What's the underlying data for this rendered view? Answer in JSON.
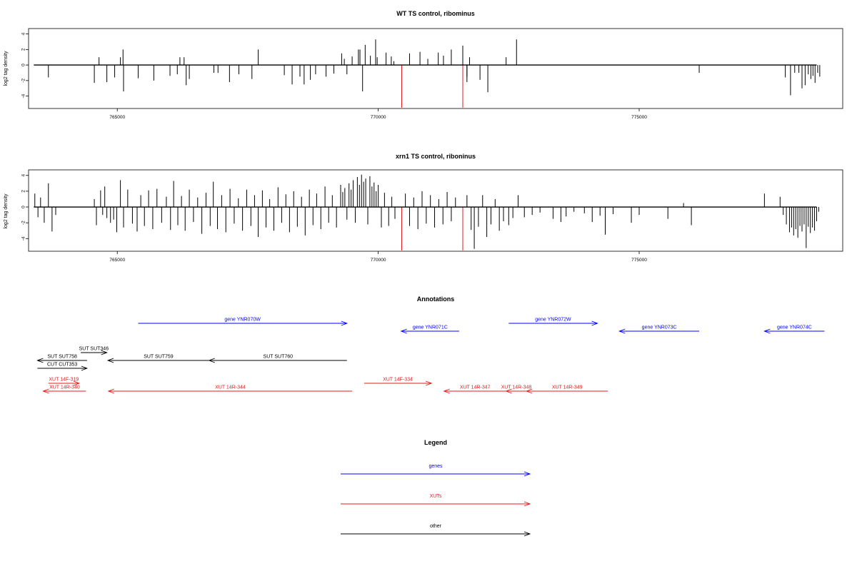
{
  "chart_data": [
    {
      "type": "bar",
      "title": "WT TS control, ribominus",
      "ylabel": "log2 tag density",
      "xlabel": "",
      "xlim": [
        763300,
        778900
      ],
      "ylim": [
        -5.6,
        4.7
      ],
      "xticks": [
        765000,
        770000,
        775000
      ],
      "xtick_labels": [
        "765000",
        "770000",
        "775000"
      ],
      "yticks": [
        4,
        2,
        0,
        -2,
        -4
      ],
      "ytick_labels": [
        "4",
        "2",
        "0",
        "-2",
        "-4"
      ],
      "baseline": {
        "from": 763400,
        "to": 778400
      },
      "bars": [
        {
          "x": 763680,
          "y": -1.6
        },
        {
          "x": 764560,
          "y": -2.3
        },
        {
          "x": 764650,
          "y": 1.0
        },
        {
          "x": 764800,
          "y": -2.2
        },
        {
          "x": 764950,
          "y": -1.6
        },
        {
          "x": 765060,
          "y": 1.0
        },
        {
          "x": 765110,
          "y": 2.0
        },
        {
          "x": 765120,
          "y": -3.4
        },
        {
          "x": 765400,
          "y": -1.7
        },
        {
          "x": 765700,
          "y": -2.0
        },
        {
          "x": 766010,
          "y": -1.4
        },
        {
          "x": 766150,
          "y": -1.2
        },
        {
          "x": 766200,
          "y": 1.0
        },
        {
          "x": 766280,
          "y": 1.0
        },
        {
          "x": 766320,
          "y": -2.6
        },
        {
          "x": 766380,
          "y": -1.8
        },
        {
          "x": 766850,
          "y": -1.0
        },
        {
          "x": 766930,
          "y": -1.0
        },
        {
          "x": 767150,
          "y": -2.2
        },
        {
          "x": 767330,
          "y": -1.2
        },
        {
          "x": 767580,
          "y": -1.8
        },
        {
          "x": 767700,
          "y": 2.0
        },
        {
          "x": 768200,
          "y": -1.3
        },
        {
          "x": 768350,
          "y": -2.5
        },
        {
          "x": 768500,
          "y": -1.5
        },
        {
          "x": 768580,
          "y": -2.5
        },
        {
          "x": 768700,
          "y": -1.9
        },
        {
          "x": 768800,
          "y": -1.2
        },
        {
          "x": 769000,
          "y": -1.5
        },
        {
          "x": 769150,
          "y": -1.1
        },
        {
          "x": 769300,
          "y": 1.5
        },
        {
          "x": 769350,
          "y": 0.8
        },
        {
          "x": 769400,
          "y": -1.2
        },
        {
          "x": 769500,
          "y": 1.1
        },
        {
          "x": 769620,
          "y": 2.0
        },
        {
          "x": 769650,
          "y": 2.0
        },
        {
          "x": 769700,
          "y": -3.4
        },
        {
          "x": 769750,
          "y": 2.6
        },
        {
          "x": 769850,
          "y": 1.2
        },
        {
          "x": 769950,
          "y": 3.3
        },
        {
          "x": 769980,
          "y": 1.0
        },
        {
          "x": 770150,
          "y": 1.6
        },
        {
          "x": 770250,
          "y": 1.1
        },
        {
          "x": 770300,
          "y": 0.5
        },
        {
          "x": 770600,
          "y": 1.5
        },
        {
          "x": 770800,
          "y": 1.7
        },
        {
          "x": 770950,
          "y": 0.8
        },
        {
          "x": 771150,
          "y": 1.6
        },
        {
          "x": 771250,
          "y": 1.2
        },
        {
          "x": 771400,
          "y": 2.0
        },
        {
          "x": 771620,
          "y": 2.5
        },
        {
          "x": 771750,
          "y": 1.0
        },
        {
          "x": 771620,
          "y": -5.5,
          "color": "#e41a1c"
        },
        {
          "x": 770450,
          "y": -5.5,
          "color": "#e41a1c"
        },
        {
          "x": 771700,
          "y": -1.5
        },
        {
          "x": 771700,
          "y": -2.2
        },
        {
          "x": 771950,
          "y": -1.9
        },
        {
          "x": 772100,
          "y": -3.5
        },
        {
          "x": 772450,
          "y": 1.0
        },
        {
          "x": 772650,
          "y": 3.3
        },
        {
          "x": 776150,
          "y": -1.0
        },
        {
          "x": 777800,
          "y": -1.6
        },
        {
          "x": 777900,
          "y": -3.9
        },
        {
          "x": 777980,
          "y": -1.0
        },
        {
          "x": 778060,
          "y": -1.0
        },
        {
          "x": 778120,
          "y": -3.0
        },
        {
          "x": 778180,
          "y": -2.6
        },
        {
          "x": 778240,
          "y": -1.2
        },
        {
          "x": 778290,
          "y": -1.8
        },
        {
          "x": 778330,
          "y": -1.4
        },
        {
          "x": 778370,
          "y": -2.3
        },
        {
          "x": 778420,
          "y": -1.0
        },
        {
          "x": 778460,
          "y": -1.5
        }
      ]
    },
    {
      "type": "bar",
      "title": "xrn1 TS control, riboninus",
      "ylabel": "log2 tag density",
      "xlabel": "",
      "xlim": [
        763300,
        778900
      ],
      "ylim": [
        -5.6,
        4.7
      ],
      "xticks": [
        765000,
        770000,
        775000
      ],
      "xtick_labels": [
        "765000",
        "770000",
        "775000"
      ],
      "yticks": [
        4,
        2,
        0,
        -2,
        -4
      ],
      "ytick_labels": [
        "4",
        "2",
        "0",
        "-2",
        "-4"
      ],
      "baseline": {
        "from": 763400,
        "to": 778400
      },
      "bars": [
        {
          "x": 763420,
          "y": 1.7
        },
        {
          "x": 763480,
          "y": -1.3
        },
        {
          "x": 763530,
          "y": 1.2
        },
        {
          "x": 763600,
          "y": -2.0
        },
        {
          "x": 763680,
          "y": 3.0
        },
        {
          "x": 763750,
          "y": -3.1
        },
        {
          "x": 763820,
          "y": -1.0
        },
        {
          "x": 764560,
          "y": 1.0
        },
        {
          "x": 764600,
          "y": -2.3
        },
        {
          "x": 764680,
          "y": 2.1
        },
        {
          "x": 764720,
          "y": -1.0
        },
        {
          "x": 764760,
          "y": 2.6
        },
        {
          "x": 764800,
          "y": -1.4
        },
        {
          "x": 764870,
          "y": -2.0
        },
        {
          "x": 764930,
          "y": -1.6
        },
        {
          "x": 764990,
          "y": -3.2
        },
        {
          "x": 765060,
          "y": 3.4
        },
        {
          "x": 765120,
          "y": -2.6
        },
        {
          "x": 765200,
          "y": 2.2
        },
        {
          "x": 765290,
          "y": -2.1
        },
        {
          "x": 765380,
          "y": -3.1
        },
        {
          "x": 765450,
          "y": 1.5
        },
        {
          "x": 765520,
          "y": -2.4
        },
        {
          "x": 765600,
          "y": 2.1
        },
        {
          "x": 765680,
          "y": -2.8
        },
        {
          "x": 765760,
          "y": 2.3
        },
        {
          "x": 765850,
          "y": -2.0
        },
        {
          "x": 765940,
          "y": 1.3
        },
        {
          "x": 766020,
          "y": -2.9
        },
        {
          "x": 766080,
          "y": 3.3
        },
        {
          "x": 766160,
          "y": -2.3
        },
        {
          "x": 766230,
          "y": 1.4
        },
        {
          "x": 766300,
          "y": -3.0
        },
        {
          "x": 766380,
          "y": 2.2
        },
        {
          "x": 766460,
          "y": -1.9
        },
        {
          "x": 766540,
          "y": 1.2
        },
        {
          "x": 766620,
          "y": -3.4
        },
        {
          "x": 766700,
          "y": 1.8
        },
        {
          "x": 766780,
          "y": -2.4
        },
        {
          "x": 766840,
          "y": 3.2
        },
        {
          "x": 766920,
          "y": -2.8
        },
        {
          "x": 767000,
          "y": 1.5
        },
        {
          "x": 767080,
          "y": -3.2
        },
        {
          "x": 767160,
          "y": 2.3
        },
        {
          "x": 767240,
          "y": -2.1
        },
        {
          "x": 767320,
          "y": 1.1
        },
        {
          "x": 767400,
          "y": -3.0
        },
        {
          "x": 767480,
          "y": 2.2
        },
        {
          "x": 767560,
          "y": -2.4
        },
        {
          "x": 767630,
          "y": 1.5
        },
        {
          "x": 767700,
          "y": -3.8
        },
        {
          "x": 767780,
          "y": 2.1
        },
        {
          "x": 767850,
          "y": -2.6
        },
        {
          "x": 767920,
          "y": 1.0
        },
        {
          "x": 768000,
          "y": -3.0
        },
        {
          "x": 768080,
          "y": 2.5
        },
        {
          "x": 768150,
          "y": -2.0
        },
        {
          "x": 768230,
          "y": 1.6
        },
        {
          "x": 768300,
          "y": -3.2
        },
        {
          "x": 768380,
          "y": 2.0
        },
        {
          "x": 768450,
          "y": -2.5
        },
        {
          "x": 768530,
          "y": 1.3
        },
        {
          "x": 768600,
          "y": -3.6
        },
        {
          "x": 768680,
          "y": 2.2
        },
        {
          "x": 768750,
          "y": -2.3
        },
        {
          "x": 768820,
          "y": 1.7
        },
        {
          "x": 768900,
          "y": -2.8
        },
        {
          "x": 768980,
          "y": 2.6
        },
        {
          "x": 769050,
          "y": -2.0
        },
        {
          "x": 769120,
          "y": 1.5
        },
        {
          "x": 769200,
          "y": -2.6
        },
        {
          "x": 769280,
          "y": 2.8
        },
        {
          "x": 769320,
          "y": 1.9
        },
        {
          "x": 769360,
          "y": 2.4
        },
        {
          "x": 769400,
          "y": -1.6
        },
        {
          "x": 769440,
          "y": 3.0
        },
        {
          "x": 769480,
          "y": 2.2
        },
        {
          "x": 769520,
          "y": 3.4
        },
        {
          "x": 769560,
          "y": -2.0
        },
        {
          "x": 769600,
          "y": 3.8
        },
        {
          "x": 769640,
          "y": 2.8
        },
        {
          "x": 769680,
          "y": 4.1
        },
        {
          "x": 769720,
          "y": 3.2
        },
        {
          "x": 769760,
          "y": 3.6
        },
        {
          "x": 769800,
          "y": -2.2
        },
        {
          "x": 769840,
          "y": 3.9
        },
        {
          "x": 769880,
          "y": 2.6
        },
        {
          "x": 769920,
          "y": 3.1
        },
        {
          "x": 769960,
          "y": 2.0
        },
        {
          "x": 770000,
          "y": 2.8
        },
        {
          "x": 770060,
          "y": -2.6
        },
        {
          "x": 770120,
          "y": 1.8
        },
        {
          "x": 770200,
          "y": -2.4
        },
        {
          "x": 770260,
          "y": 1.3
        },
        {
          "x": 770320,
          "y": -1.5
        },
        {
          "x": 770450,
          "y": -5.5,
          "color": "#e41a1c"
        },
        {
          "x": 770520,
          "y": 1.7
        },
        {
          "x": 770600,
          "y": -2.4
        },
        {
          "x": 770680,
          "y": 1.2
        },
        {
          "x": 770760,
          "y": -2.8
        },
        {
          "x": 770840,
          "y": 2.0
        },
        {
          "x": 770920,
          "y": -2.1
        },
        {
          "x": 771000,
          "y": 1.5
        },
        {
          "x": 771080,
          "y": -2.6
        },
        {
          "x": 771160,
          "y": 1.0
        },
        {
          "x": 771240,
          "y": -2.2
        },
        {
          "x": 771320,
          "y": 1.9
        },
        {
          "x": 771400,
          "y": -1.8
        },
        {
          "x": 771480,
          "y": 1.2
        },
        {
          "x": 771620,
          "y": -5.5,
          "color": "#e41a1c"
        },
        {
          "x": 771700,
          "y": 1.5
        },
        {
          "x": 771780,
          "y": -2.9
        },
        {
          "x": 771840,
          "y": -5.3
        },
        {
          "x": 771920,
          "y": -2.5
        },
        {
          "x": 772000,
          "y": 1.5
        },
        {
          "x": 772080,
          "y": -3.8
        },
        {
          "x": 772160,
          "y": -2.2
        },
        {
          "x": 772240,
          "y": 1.0
        },
        {
          "x": 772320,
          "y": -3.0
        },
        {
          "x": 772400,
          "y": -1.8
        },
        {
          "x": 772500,
          "y": -2.3
        },
        {
          "x": 772580,
          "y": -1.4
        },
        {
          "x": 772680,
          "y": 1.5
        },
        {
          "x": 772800,
          "y": -1.3
        },
        {
          "x": 772950,
          "y": -1.0
        },
        {
          "x": 773100,
          "y": -0.7
        },
        {
          "x": 773350,
          "y": -1.5
        },
        {
          "x": 773500,
          "y": -1.9
        },
        {
          "x": 773600,
          "y": -1.2
        },
        {
          "x": 773750,
          "y": -0.6
        },
        {
          "x": 773950,
          "y": -0.8
        },
        {
          "x": 774100,
          "y": -1.9
        },
        {
          "x": 774250,
          "y": -1.1
        },
        {
          "x": 774350,
          "y": -3.5
        },
        {
          "x": 774500,
          "y": -0.9
        },
        {
          "x": 774850,
          "y": -2.0
        },
        {
          "x": 775000,
          "y": -1.0
        },
        {
          "x": 775550,
          "y": -1.5
        },
        {
          "x": 775850,
          "y": 0.5
        },
        {
          "x": 776000,
          "y": -2.3
        },
        {
          "x": 777400,
          "y": 1.7
        },
        {
          "x": 777700,
          "y": 1.3
        },
        {
          "x": 777760,
          "y": -1.0
        },
        {
          "x": 777820,
          "y": -2.2
        },
        {
          "x": 777880,
          "y": -3.2
        },
        {
          "x": 777920,
          "y": -2.6
        },
        {
          "x": 777960,
          "y": -3.6
        },
        {
          "x": 778000,
          "y": -2.8
        },
        {
          "x": 778040,
          "y": -3.9
        },
        {
          "x": 778080,
          "y": -2.4
        },
        {
          "x": 778120,
          "y": -3.1
        },
        {
          "x": 778160,
          "y": -2.2
        },
        {
          "x": 778200,
          "y": -5.2
        },
        {
          "x": 778240,
          "y": -2.5
        },
        {
          "x": 778280,
          "y": -3.3
        },
        {
          "x": 778320,
          "y": -2.6
        },
        {
          "x": 778360,
          "y": -3.0
        },
        {
          "x": 778400,
          "y": -1.8
        },
        {
          "x": 778440,
          "y": -0.6
        }
      ]
    }
  ],
  "annotations": {
    "title": "Annotations",
    "features": [
      {
        "label": "gene YNR070W",
        "start": 765400,
        "end": 769400,
        "strand": "+",
        "color": "#0000ff",
        "row": 0
      },
      {
        "label": "gene YNR071C",
        "start": 770440,
        "end": 771550,
        "strand": "-",
        "color": "#0000ff",
        "row": 1
      },
      {
        "label": "gene YNR072W",
        "start": 772500,
        "end": 774200,
        "strand": "+",
        "color": "#0000ff",
        "row": 0
      },
      {
        "label": "gene YNR073C",
        "start": 774620,
        "end": 776150,
        "strand": "-",
        "color": "#0000ff",
        "row": 1
      },
      {
        "label": "gene YNR074C",
        "start": 777400,
        "end": 778550,
        "strand": "-",
        "color": "#0000ff",
        "row": 1
      },
      {
        "label": "SUT SUT346",
        "start": 764300,
        "end": 764800,
        "strand": "+",
        "color": "#000000",
        "row": 2
      },
      {
        "label": "SUT SUT758",
        "start": 763470,
        "end": 764420,
        "strand": "-",
        "color": "#000000",
        "row": 3
      },
      {
        "label": "SUT SUT759",
        "start": 764820,
        "end": 766760,
        "strand": "-",
        "color": "#000000",
        "row": 3
      },
      {
        "label": "SUT SUT760",
        "start": 766760,
        "end": 769400,
        "strand": "-",
        "color": "#000000",
        "row": 3
      },
      {
        "label": "CUT CUT353",
        "start": 763470,
        "end": 764420,
        "strand": "+",
        "color": "#000000",
        "row": 4
      },
      {
        "label": "XUT 14F-319",
        "start": 763680,
        "end": 764270,
        "strand": "+",
        "color": "#e41a1c",
        "row": 5
      },
      {
        "label": "XUT 14F-334",
        "start": 769730,
        "end": 771020,
        "strand": "+",
        "color": "#e41a1c",
        "row": 5
      },
      {
        "label": "XUT 14R-340",
        "start": 763580,
        "end": 764400,
        "strand": "-",
        "color": "#e41a1c",
        "row": 6
      },
      {
        "label": "XUT 14R-344",
        "start": 764830,
        "end": 769500,
        "strand": "-",
        "color": "#e41a1c",
        "row": 6
      },
      {
        "label": "XUT 14R-347",
        "start": 771260,
        "end": 772450,
        "strand": "-",
        "color": "#e41a1c",
        "row": 6
      },
      {
        "label": "XUT 14R-348",
        "start": 772450,
        "end": 772840,
        "strand": "-",
        "color": "#e41a1c",
        "row": 6
      },
      {
        "label": "XUT 14R-349",
        "start": 772840,
        "end": 774400,
        "strand": "-",
        "color": "#e41a1c",
        "row": 6
      }
    ]
  },
  "legend": {
    "title": "Legend",
    "items": [
      {
        "label": "genes",
        "color": "#0000ff"
      },
      {
        "label": "XUTs",
        "color": "#e41a1c"
      },
      {
        "label": "other",
        "color": "#000000"
      }
    ]
  }
}
